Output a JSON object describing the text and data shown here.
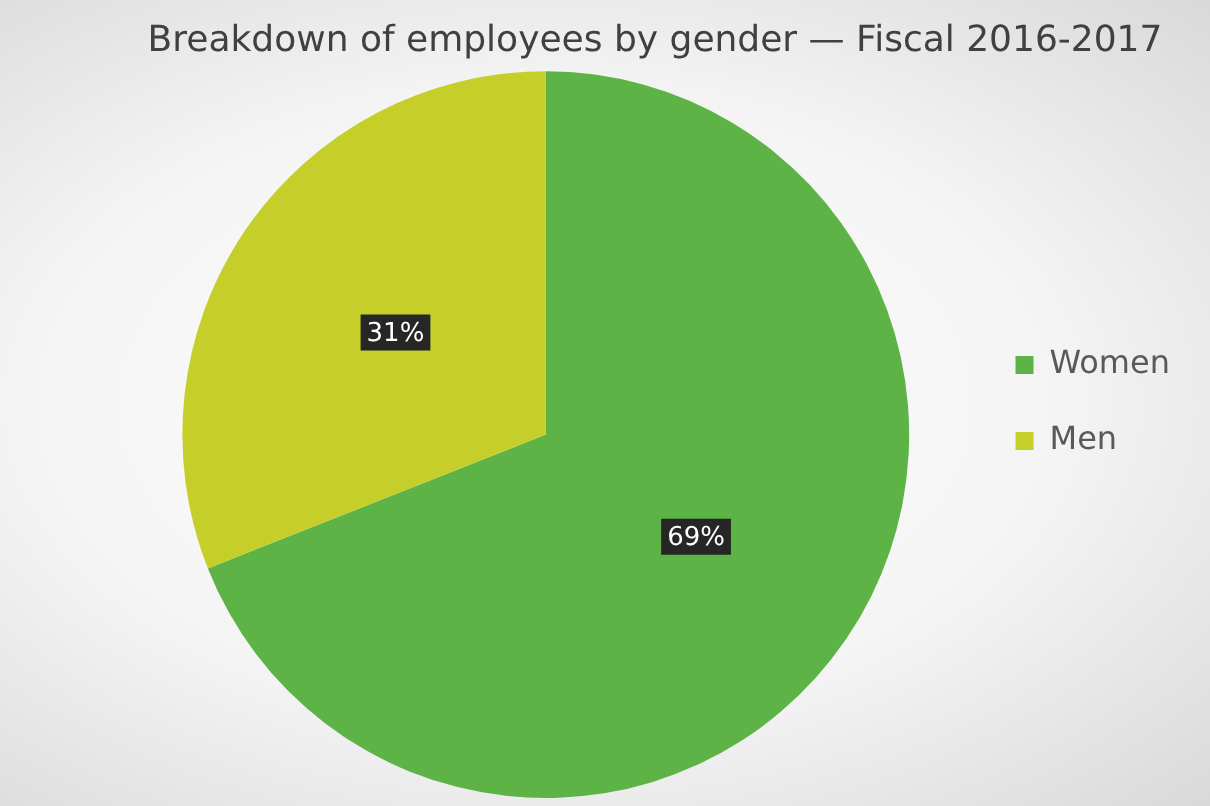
{
  "chart_data": {
    "type": "pie",
    "title": "Breakdown of employees by gender — Fiscal 2016-2017",
    "categories": [
      "Women",
      "Men"
    ],
    "values": [
      69,
      31
    ],
    "colors": [
      "#5db346",
      "#c6cf2a"
    ],
    "value_labels": [
      "69%",
      "31%"
    ],
    "legend": "right"
  }
}
